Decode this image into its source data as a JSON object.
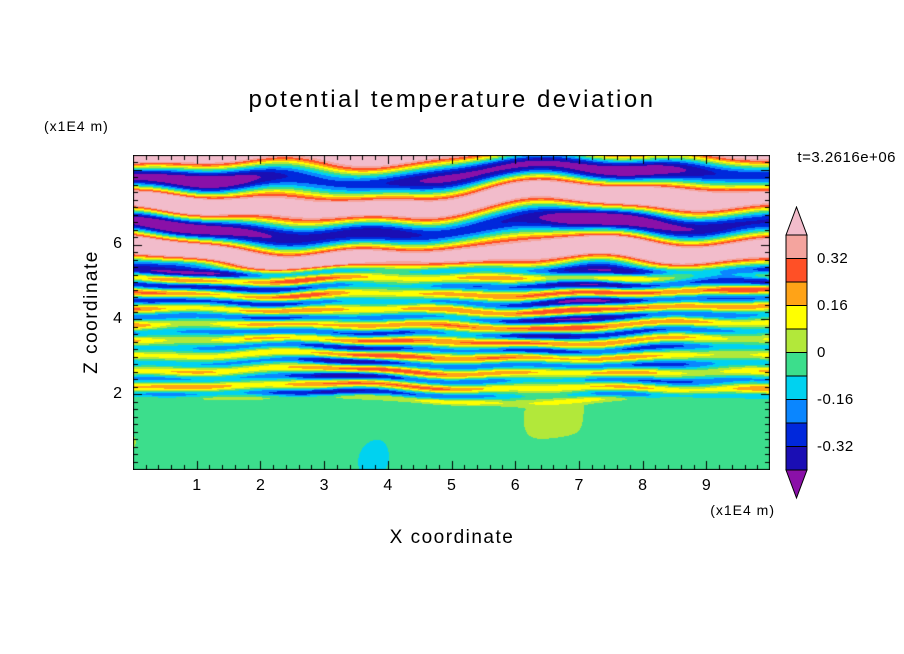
{
  "title": "potential temperature deviation",
  "timestamp": "t=3.2616e+06",
  "axes": {
    "x": {
      "label": "X coordinate",
      "unit": "(x1E4 m)",
      "ticks": [
        1,
        2,
        3,
        4,
        5,
        6,
        7,
        8,
        9
      ]
    },
    "z": {
      "label": "Z coordinate",
      "unit": "(x1E4 m)",
      "ticks": [
        2,
        4,
        6
      ]
    }
  },
  "colorbar": {
    "tick_labels": [
      "0.32",
      "0.16",
      "0",
      "-0.16",
      "-0.32"
    ],
    "tick_values": [
      0.32,
      0.16,
      0,
      -0.16,
      -0.32
    ],
    "value_range": [
      -0.4,
      0.4
    ],
    "segment_colors_top_to_bottom": [
      "#F4A49E",
      "#FF5026",
      "#FFA317",
      "#FFFF00",
      "#B2E83A",
      "#3CDE8C",
      "#00D2F0",
      "#0A86FF",
      "#0028DC",
      "#1A0EB4"
    ],
    "arrow_top_color": "#F2BCCB",
    "arrow_bottom_color": "#8A10A8"
  },
  "chart_data": {
    "type": "heatmap",
    "title": "potential temperature deviation",
    "xlabel": "X coordinate (x1E4 m)",
    "ylabel": "Z coordinate (x1E4 m)",
    "time_label": "t=3.2616e+06",
    "xlim": [
      0,
      10
    ],
    "ylim": [
      0,
      8.4
    ],
    "x_ticks": [
      1,
      2,
      3,
      4,
      5,
      6,
      7,
      8,
      9
    ],
    "z_ticks": [
      2,
      4,
      6
    ],
    "grid": false,
    "colorbar_side": "right",
    "contour_levels": [
      -0.4,
      -0.32,
      -0.24,
      -0.16,
      -0.08,
      0,
      0.08,
      0.16,
      0.24,
      0.32,
      0.4
    ],
    "level_colors": [
      "#8A10A8",
      "#1A0EB4",
      "#0028DC",
      "#0A86FF",
      "#00D2F0",
      "#3CDE8C",
      "#B2E83A",
      "#FFFF00",
      "#FFA317",
      "#FF5026",
      "#F4A49E",
      "#F2BCCB"
    ],
    "field_summary": {
      "z_0_to_2": "near-zero deviations; solid green with light-green patches",
      "z_2_to_5": "thin turbulent layers alternating roughly between -0.35 and +0.35 (blue/cyan versus yellow/orange/red streaks)",
      "z_5_to_top": "thick wavy bands of strong positive (>0.32, salmon) and strong negative (<-0.32, purple) deviation"
    }
  }
}
